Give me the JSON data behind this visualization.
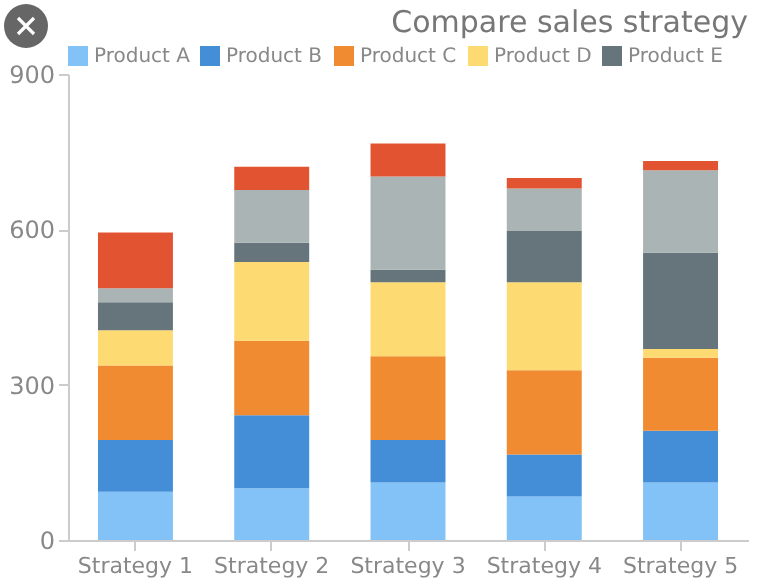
{
  "chart_data": {
    "type": "bar",
    "title": "Compare sales strategy",
    "stacked": true,
    "legend": "top",
    "grid": false,
    "categories": [
      "Strategy 1",
      "Strategy 2",
      "Strategy 3",
      "Strategy 4",
      "Strategy 5"
    ],
    "ylim": [
      0,
      900
    ],
    "yticks": [
      0,
      300,
      600,
      900
    ],
    "series": [
      {
        "name": "Product A",
        "color": "#7bbff5",
        "values": [
          93,
          100,
          111,
          84,
          111
        ]
      },
      {
        "name": "Product B",
        "color": "#3a88d6",
        "values": [
          100,
          141,
          82,
          81,
          100
        ]
      },
      {
        "name": "Product C",
        "color": "#f08526",
        "values": [
          144,
          144,
          162,
          163,
          141
        ]
      },
      {
        "name": "Product D",
        "color": "#fed96a",
        "values": [
          68,
          152,
          143,
          170,
          17
        ]
      },
      {
        "name": "Product E",
        "color": "#5e6e75",
        "values": [
          54,
          37,
          24,
          99,
          186
        ]
      },
      {
        "color": "#a5b0b0",
        "values": [
          27,
          102,
          180,
          82,
          159
        ]
      },
      {
        "color": "#e04a27",
        "values": [
          108,
          45,
          64,
          20,
          18
        ]
      }
    ]
  }
}
